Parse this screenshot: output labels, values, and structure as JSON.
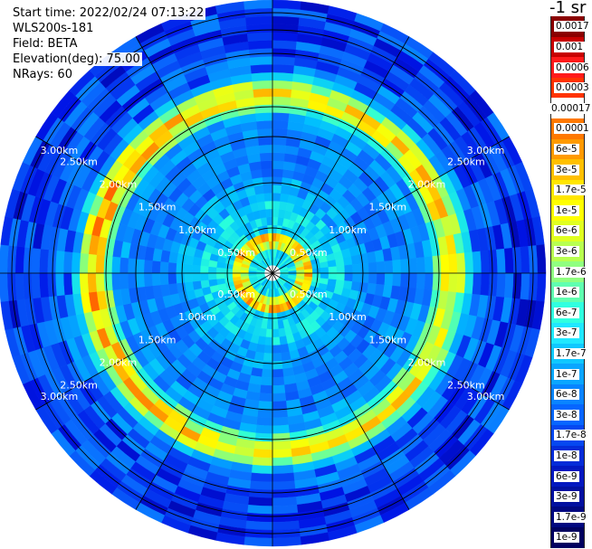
{
  "header": {
    "start_time": "Start time: 2022/02/24 07:13:22",
    "instrument": "WLS200s-181",
    "field": "Field: BETA",
    "elevation": "Elevation(deg): 75.00",
    "nrays": "NRays: 60"
  },
  "colorbar": {
    "unit": "-1 sr",
    "labels": [
      "0.0017",
      "0.001",
      "0.0006",
      "0.0003",
      "0.00017",
      "0.0001",
      "6e-5",
      "3e-5",
      "1.7e-5",
      "1e-5",
      "6e-6",
      "3e-6",
      "1.7e-6",
      "1e-6",
      "6e-7",
      "3e-7",
      "1.7e-7",
      "1e-7",
      "6e-8",
      "3e-8",
      "1.7e-8",
      "1e-8",
      "6e-9",
      "3e-9",
      "1.7e-9",
      "1e-9"
    ],
    "colors": [
      "#8b0000",
      "#c80000",
      "#ff1a1a",
      "#ff3300",
      "#ffffff",
      "#ff7800",
      "#ff9a00",
      "#ffc000",
      "#ffe600",
      "#ffff00",
      "#e0ff20",
      "#b8ff50",
      "#90ff80",
      "#60ffb0",
      "#30ffe0",
      "#20e8ff",
      "#10c8ff",
      "#0aa6ff",
      "#0884ff",
      "#0666ff",
      "#0548f0",
      "#042cd8",
      "#0318c0",
      "#0210a0",
      "#010880",
      "#000060"
    ]
  },
  "range_labels": [
    "0.50km",
    "1.00km",
    "1.50km",
    "2.00km",
    "2.50km",
    "3.00km"
  ]
}
